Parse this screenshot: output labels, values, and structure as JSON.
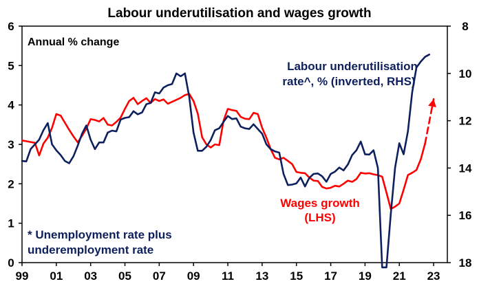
{
  "chart_data": {
    "type": "line",
    "title": "Labour underutilisation and wages growth",
    "subtitle": "Annual % change",
    "x_ticks": [
      "99",
      "01",
      "03",
      "05",
      "07",
      "09",
      "11",
      "13",
      "15",
      "17",
      "19",
      "21",
      "23"
    ],
    "xlim": [
      1999,
      2023.8
    ],
    "y_left": {
      "lim": [
        0,
        6
      ],
      "ticks": [
        "0",
        "1",
        "2",
        "3",
        "4",
        "5",
        "6"
      ]
    },
    "y_right": {
      "lim": [
        8,
        18
      ],
      "inverted": true,
      "ticks": [
        "8",
        "10",
        "12",
        "14",
        "16",
        "18"
      ]
    },
    "colors": {
      "wages": "#ff0000",
      "underutilisation": "#0d1f5c"
    },
    "annotations": {
      "underutilisation_line1": "Labour underutilisation",
      "underutilisation_line2": "rate^, % (inverted, RHS)",
      "wages_line1": "Wages growth",
      "wages_line2": "(LHS)",
      "footnote_line1": "* Unemployment rate plus",
      "footnote_line2": "underemployment rate"
    },
    "series": [
      {
        "key": "wages",
        "axis": "left",
        "x": [
          1999.0,
          1999.25,
          1999.5,
          1999.75,
          2000.0,
          2000.25,
          2000.5,
          2000.75,
          2001.0,
          2001.25,
          2001.5,
          2001.75,
          2002.0,
          2002.25,
          2002.5,
          2002.75,
          2003.0,
          2003.25,
          2003.5,
          2003.75,
          2004.0,
          2004.25,
          2004.5,
          2004.75,
          2005.0,
          2005.25,
          2005.5,
          2005.75,
          2006.0,
          2006.25,
          2006.5,
          2006.75,
          2007.0,
          2007.25,
          2007.5,
          2007.75,
          2008.0,
          2008.25,
          2008.5,
          2008.75,
          2009.0,
          2009.25,
          2009.5,
          2009.75,
          2010.0,
          2010.25,
          2010.5,
          2010.75,
          2011.0,
          2011.25,
          2011.5,
          2011.75,
          2012.0,
          2012.25,
          2012.5,
          2012.75,
          2013.0,
          2013.25,
          2013.5,
          2013.75,
          2014.0,
          2014.25,
          2014.5,
          2014.75,
          2015.0,
          2015.25,
          2015.5,
          2015.75,
          2016.0,
          2016.25,
          2016.5,
          2016.75,
          2017.0,
          2017.25,
          2017.5,
          2017.75,
          2018.0,
          2018.25,
          2018.5,
          2018.75,
          2019.0,
          2019.25,
          2019.5,
          2019.75,
          2020.0,
          2020.25,
          2020.5,
          2020.75,
          2021.0,
          2021.25,
          2021.5,
          2021.75,
          2022.0,
          2022.25,
          2022.5
        ],
        "values": [
          3.1,
          3.08,
          3.06,
          3.04,
          2.72,
          3.02,
          3.17,
          3.42,
          3.77,
          3.73,
          3.55,
          3.37,
          3.2,
          3.05,
          3.22,
          3.4,
          3.64,
          3.62,
          3.58,
          3.67,
          3.5,
          3.48,
          3.57,
          3.68,
          3.9,
          4.1,
          4.18,
          4.02,
          4.1,
          4.17,
          4.05,
          4.15,
          4.1,
          4.14,
          4.03,
          4.08,
          4.13,
          4.18,
          4.25,
          4.28,
          4.1,
          3.78,
          3.18,
          3.0,
          2.92,
          3.0,
          2.98,
          3.6,
          3.9,
          3.87,
          3.85,
          3.7,
          3.65,
          3.64,
          3.8,
          3.77,
          3.42,
          3.17,
          2.88,
          2.66,
          2.62,
          2.66,
          2.58,
          2.5,
          2.3,
          2.28,
          2.27,
          2.16,
          2.08,
          2.07,
          1.92,
          1.88,
          1.9,
          1.95,
          1.93,
          2.0,
          2.08,
          2.05,
          2.12,
          2.28,
          2.26,
          2.27,
          2.24,
          2.22,
          2.18,
          1.78,
          1.36,
          1.42,
          1.5,
          1.85,
          2.22,
          2.28,
          2.35,
          2.62,
          3.02
        ]
      },
      {
        "key": "wages_projection",
        "axis": "left",
        "style": "dashed",
        "x": [
          2022.5,
          2023.0
        ],
        "values": [
          3.02,
          4.15
        ]
      },
      {
        "key": "underutilisation",
        "axis": "right",
        "x": [
          1999.0,
          1999.25,
          1999.5,
          1999.75,
          2000.0,
          2000.25,
          2000.5,
          2000.75,
          2001.0,
          2001.25,
          2001.5,
          2001.75,
          2002.0,
          2002.25,
          2002.5,
          2002.75,
          2003.0,
          2003.25,
          2003.5,
          2003.75,
          2004.0,
          2004.25,
          2004.5,
          2004.75,
          2005.0,
          2005.25,
          2005.5,
          2005.75,
          2006.0,
          2006.25,
          2006.5,
          2006.75,
          2007.0,
          2007.25,
          2007.5,
          2007.75,
          2008.0,
          2008.25,
          2008.5,
          2008.75,
          2009.0,
          2009.25,
          2009.5,
          2009.75,
          2010.0,
          2010.25,
          2010.5,
          2010.75,
          2011.0,
          2011.25,
          2011.5,
          2011.75,
          2012.0,
          2012.25,
          2012.5,
          2012.75,
          2013.0,
          2013.25,
          2013.5,
          2013.75,
          2014.0,
          2014.25,
          2014.5,
          2014.75,
          2015.0,
          2015.25,
          2015.5,
          2015.75,
          2016.0,
          2016.25,
          2016.5,
          2016.75,
          2017.0,
          2017.25,
          2017.5,
          2017.75,
          2018.0,
          2018.25,
          2018.5,
          2018.75,
          2019.0,
          2019.25,
          2019.5,
          2019.75,
          2020.0,
          2020.25,
          2020.5,
          2020.75,
          2021.0,
          2021.25,
          2021.5,
          2021.75,
          2022.0,
          2022.25,
          2022.5,
          2022.75
        ],
        "values": [
          13.7,
          13.72,
          13.2,
          13.0,
          12.8,
          12.4,
          12.1,
          13.0,
          13.25,
          13.45,
          13.7,
          13.8,
          13.5,
          13.05,
          12.55,
          12.2,
          12.8,
          13.2,
          12.92,
          12.92,
          12.5,
          12.42,
          12.45,
          11.95,
          11.88,
          11.85,
          11.6,
          11.73,
          11.65,
          11.3,
          11.25,
          10.8,
          10.85,
          10.6,
          10.5,
          10.45,
          10.0,
          10.12,
          10.0,
          11.0,
          12.5,
          13.27,
          13.27,
          13.1,
          12.82,
          12.4,
          12.32,
          12.05,
          11.8,
          11.93,
          11.9,
          12.25,
          12.32,
          12.35,
          12.15,
          12.35,
          12.55,
          13.0,
          13.2,
          13.3,
          13.35,
          14.25,
          14.72,
          14.7,
          14.65,
          14.4,
          14.78,
          14.42,
          14.25,
          14.23,
          14.35,
          14.58,
          14.25,
          14.15,
          13.98,
          14.1,
          13.85,
          13.45,
          13.25,
          12.88,
          13.42,
          13.43,
          13.25,
          14.0,
          18.2,
          18.2,
          15.95,
          14.0,
          12.95,
          13.42,
          12.45,
          10.8,
          9.75,
          9.5,
          9.3,
          9.2
        ]
      }
    ]
  }
}
